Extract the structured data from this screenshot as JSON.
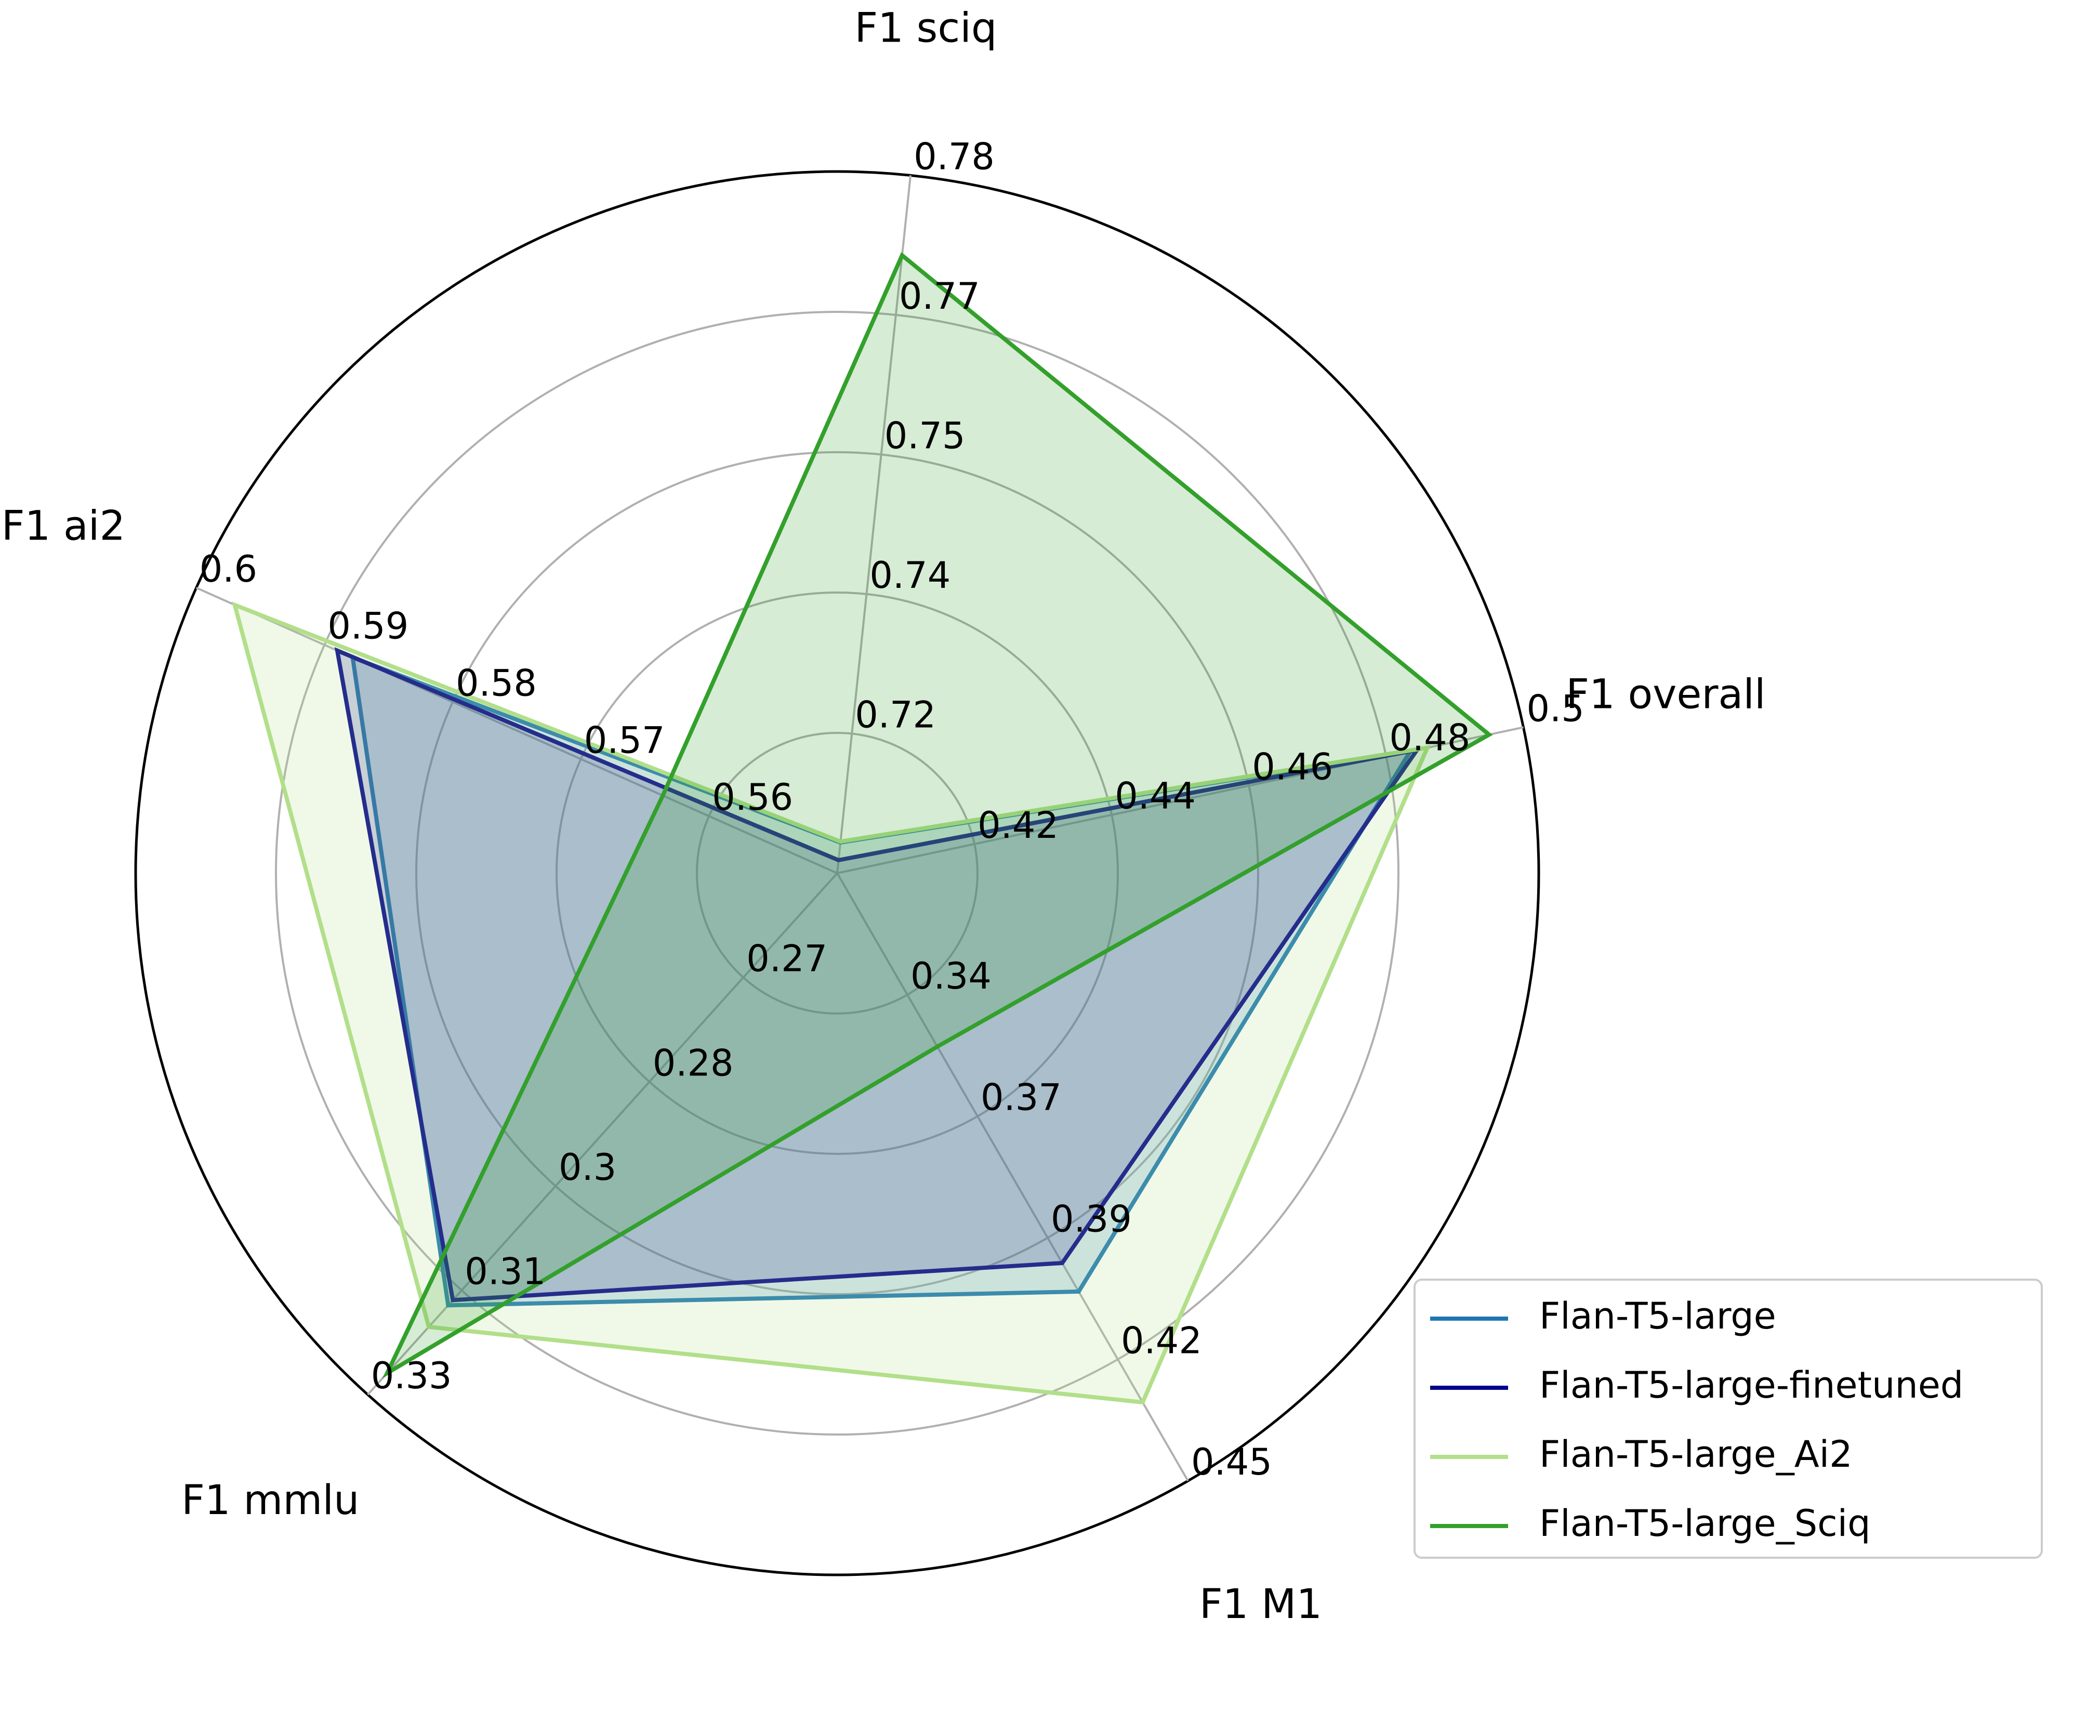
{
  "chart_data": {
    "type": "radar",
    "axes": [
      {
        "name": "F1 overall",
        "ticks": [
          "0.42",
          "0.44",
          "0.46",
          "0.48",
          "0.5"
        ],
        "range": [
          0.4,
          0.5
        ]
      },
      {
        "name": "F1 M1",
        "ticks": [
          "0.34",
          "0.37",
          "0.39",
          "0.42",
          "0.45"
        ],
        "range": [
          0.32,
          0.45
        ]
      },
      {
        "name": "F1 mmlu",
        "ticks": [
          "0.27",
          "0.28",
          "0.3",
          "0.31",
          "0.33"
        ],
        "range": [
          0.25,
          0.33
        ]
      },
      {
        "name": "F1 ai2",
        "ticks": [
          "0.56",
          "0.57",
          "0.58",
          "0.59",
          "0.6"
        ],
        "range": [
          0.55,
          0.6
        ]
      },
      {
        "name": "F1 sciq",
        "ticks": [
          "0.72",
          "0.74",
          "0.75",
          "0.77",
          "0.78"
        ],
        "range": [
          0.705,
          0.78
        ]
      }
    ],
    "series": [
      {
        "name": "Flan-T5-large",
        "color": "#1f77b4",
        "fill_opacity": 0.2,
        "values": [
          0.4835,
          0.4095,
          0.3163,
          0.5878,
          0.7083
        ]
      },
      {
        "name": "Flan-T5-large-finetuned",
        "color": "#00008b",
        "fill_opacity": 0.2,
        "values": [
          0.4845,
          0.4034,
          0.3155,
          0.589,
          0.7064
        ]
      },
      {
        "name": "Flan-T5-large_Ai2",
        "color": "#b2df8a",
        "fill_opacity": 0.2,
        "values": [
          0.486,
          0.4332,
          0.3196,
          0.597,
          0.7084
        ]
      },
      {
        "name": "Flan-T5-large_Sciq",
        "color": "#33a02c",
        "fill_opacity": 0.2,
        "values": [
          0.495,
          0.3571,
          0.3267,
          0.5636,
          0.7714
        ]
      }
    ],
    "legend_position": "lower-right",
    "grid": true
  }
}
